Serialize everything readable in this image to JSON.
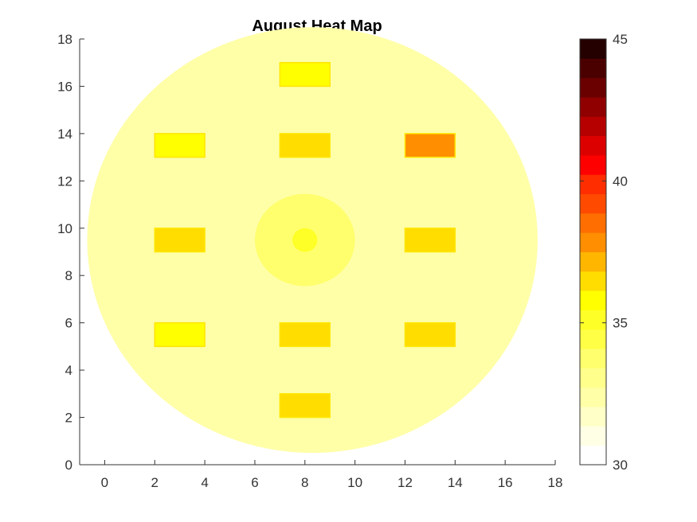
{
  "chart_data": {
    "type": "heatmap",
    "title": "August Heat Map",
    "xlabel": "",
    "ylabel": "",
    "xlim": [
      -1,
      18
    ],
    "ylim": [
      0,
      18
    ],
    "x_ticks": [
      0,
      2,
      4,
      6,
      8,
      10,
      12,
      14,
      16,
      18
    ],
    "y_ticks": [
      0,
      2,
      4,
      6,
      8,
      10,
      12,
      14,
      16,
      18
    ],
    "grid": false,
    "background_field": {
      "shape": "circle",
      "center": [
        8.3,
        9.5
      ],
      "radius": 9.0,
      "value": 32.2
    },
    "central_zones": [
      {
        "shape": "ellipse",
        "center": [
          8.0,
          9.5
        ],
        "radius_x": 2.0,
        "radius_y": 1.95,
        "value": 33.6
      },
      {
        "shape": "ellipse",
        "center": [
          8.0,
          9.5
        ],
        "radius_x": 0.5,
        "radius_y": 0.5,
        "value": 35.0
      }
    ],
    "heat_sources": [
      {
        "x": [
          7,
          9
        ],
        "y": [
          16,
          17
        ],
        "value": 35.5
      },
      {
        "x": [
          2,
          4
        ],
        "y": [
          13,
          14
        ],
        "value": 35.5
      },
      {
        "x": [
          7,
          9
        ],
        "y": [
          13,
          14
        ],
        "value": 36.3
      },
      {
        "x": [
          12,
          14
        ],
        "y": [
          13,
          14
        ],
        "value": 37.8
      },
      {
        "x": [
          2,
          4
        ],
        "y": [
          9,
          10
        ],
        "value": 36.3
      },
      {
        "x": [
          12,
          14
        ],
        "y": [
          9,
          10
        ],
        "value": 36.3
      },
      {
        "x": [
          2,
          4
        ],
        "y": [
          5,
          6
        ],
        "value": 35.5
      },
      {
        "x": [
          7,
          9
        ],
        "y": [
          5,
          6
        ],
        "value": 36.3
      },
      {
        "x": [
          12,
          14
        ],
        "y": [
          5,
          6
        ],
        "value": 36.3
      },
      {
        "x": [
          7,
          9
        ],
        "y": [
          2,
          3
        ],
        "value": 36.3
      }
    ],
    "colorbar": {
      "range": [
        30,
        45
      ],
      "ticks": [
        30,
        35,
        40,
        45
      ],
      "colors": [
        "#ffffff",
        "#ffffe6",
        "#ffffc8",
        "#ffffa8",
        "#ffff8c",
        "#ffff6e",
        "#ffff46",
        "#ffff28",
        "#ffff00",
        "#ffdd00",
        "#ffb600",
        "#ff8e00",
        "#ff6e00",
        "#ff4a00",
        "#ff2d00",
        "#ff0000",
        "#dd0000",
        "#b60000",
        "#900000",
        "#6a0000",
        "#4b0000",
        "#240000"
      ]
    }
  }
}
